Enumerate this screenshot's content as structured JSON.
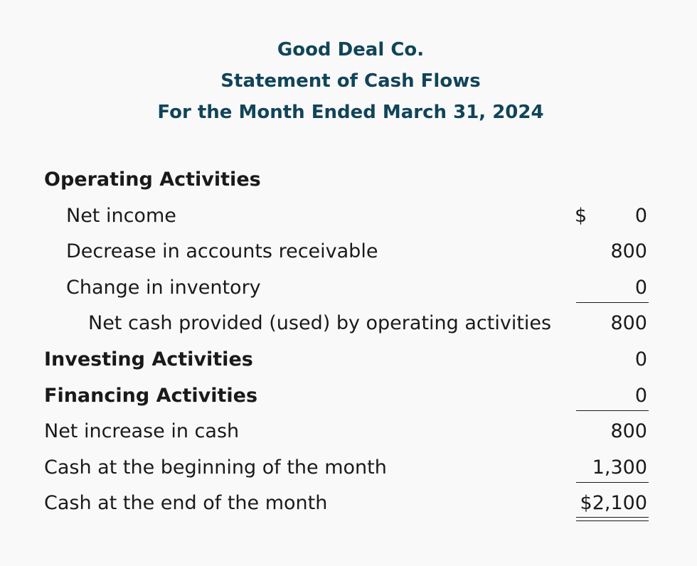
{
  "statement": {
    "company": "Good Deal Co.",
    "title": "Statement of Cash Flows",
    "period": "For the Month Ended March 31, 2024"
  },
  "rows": [
    {
      "label": "Operating Activities",
      "amount": "",
      "dollar": ""
    },
    {
      "label": "Net income",
      "amount": "0",
      "dollar": "$"
    },
    {
      "label": "Decrease in accounts receivable",
      "amount": "800",
      "dollar": ""
    },
    {
      "label": "Change in inventory",
      "amount": "0",
      "dollar": ""
    },
    {
      "label": "Net cash provided (used) by operating activities",
      "amount": "800",
      "dollar": ""
    },
    {
      "label": "Investing Activities",
      "amount": "0",
      "dollar": ""
    },
    {
      "label": "Financing Activities",
      "amount": "0",
      "dollar": ""
    },
    {
      "label": "Net increase in cash",
      "amount": "800",
      "dollar": ""
    },
    {
      "label": "Cash at the beginning of the month",
      "amount": "1,300",
      "dollar": ""
    },
    {
      "label": "Cash at the end of the month",
      "amount": "2,100",
      "dollar": "$"
    }
  ]
}
